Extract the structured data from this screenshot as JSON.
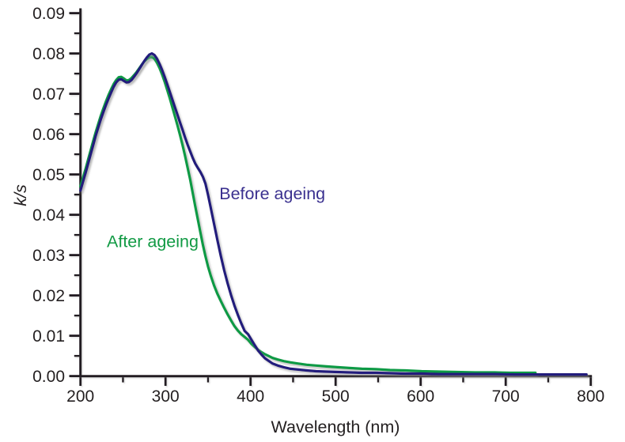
{
  "figure": {
    "background": "#ffffff"
  },
  "chart_data": {
    "type": "line",
    "title": "",
    "xlabel": "Wavelength (nm)",
    "ylabel": "k/s",
    "xlim": [
      200,
      800
    ],
    "ylim": [
      0,
      0.09
    ],
    "grid": false,
    "legend_position": "in-plot text labels",
    "axis_color": "#231f20",
    "x_major_ticks": [
      200,
      300,
      400,
      500,
      600,
      700,
      800
    ],
    "x_minor_ticks": [
      250,
      350,
      450,
      550,
      650,
      750
    ],
    "y_major_ticks": [
      0,
      0.01,
      0.02,
      0.03,
      0.04,
      0.05,
      0.06,
      0.07,
      0.08,
      0.09
    ],
    "y_minor_ticks": [
      0.005,
      0.015,
      0.025,
      0.035,
      0.045,
      0.055,
      0.065,
      0.075,
      0.085
    ],
    "y_tick_decimals": 2,
    "series": [
      {
        "name": "Before ageing",
        "color": "#241d7c",
        "label_color": "#3a308f",
        "label_anchor": {
          "nm": 363.3,
          "ks": 0.0438
        },
        "points": [
          [
            200,
            0.046
          ],
          [
            203,
            0.0482
          ],
          [
            206,
            0.0504
          ],
          [
            209,
            0.0527
          ],
          [
            212,
            0.055
          ],
          [
            215,
            0.0573
          ],
          [
            218,
            0.0596
          ],
          [
            221,
            0.0617
          ],
          [
            224,
            0.0637
          ],
          [
            227,
            0.0655
          ],
          [
            230,
            0.0672
          ],
          [
            233,
            0.0688
          ],
          [
            236,
            0.0703
          ],
          [
            239,
            0.0717
          ],
          [
            242,
            0.0728
          ],
          [
            245,
            0.0735
          ],
          [
            248,
            0.0736
          ],
          [
            251,
            0.0732
          ],
          [
            254,
            0.0728
          ],
          [
            257,
            0.0729
          ],
          [
            260,
            0.0734
          ],
          [
            263,
            0.0742
          ],
          [
            266,
            0.0751
          ],
          [
            269,
            0.0761
          ],
          [
            272,
            0.0771
          ],
          [
            275,
            0.0781
          ],
          [
            278,
            0.079
          ],
          [
            281,
            0.0797
          ],
          [
            284,
            0.08
          ],
          [
            287,
            0.0796
          ],
          [
            290,
            0.0787
          ],
          [
            293,
            0.0774
          ],
          [
            296,
            0.0759
          ],
          [
            299,
            0.0742
          ],
          [
            302,
            0.0724
          ],
          [
            305,
            0.0705
          ],
          [
            308,
            0.0686
          ],
          [
            311,
            0.0667
          ],
          [
            314,
            0.0648
          ],
          [
            317,
            0.0629
          ],
          [
            320,
            0.0611
          ],
          [
            323,
            0.0592
          ],
          [
            326,
            0.0574
          ],
          [
            329,
            0.0557
          ],
          [
            332,
            0.0541
          ],
          [
            335,
            0.0527
          ],
          [
            338,
            0.0516
          ],
          [
            341,
            0.0506
          ],
          [
            344,
            0.0494
          ],
          [
            347,
            0.0477
          ],
          [
            350,
            0.045
          ],
          [
            353,
            0.0419
          ],
          [
            357,
            0.0378
          ],
          [
            361,
            0.0337
          ],
          [
            365,
            0.0298
          ],
          [
            369,
            0.0262
          ],
          [
            373,
            0.023
          ],
          [
            377,
            0.0201
          ],
          [
            381,
            0.0175
          ],
          [
            385,
            0.0152
          ],
          [
            389,
            0.0131
          ],
          [
            393,
            0.0112
          ],
          [
            397,
            0.0104
          ],
          [
            401,
            0.009
          ],
          [
            405,
            0.0076
          ],
          [
            409,
            0.0063
          ],
          [
            413,
            0.0053
          ],
          [
            417,
            0.0044
          ],
          [
            421,
            0.0038
          ],
          [
            426,
            0.0031
          ],
          [
            432,
            0.0026
          ],
          [
            439,
            0.0022
          ],
          [
            447,
            0.0018
          ],
          [
            456,
            0.0016
          ],
          [
            466,
            0.0014
          ],
          [
            477,
            0.0012
          ],
          [
            489,
            0.0011
          ],
          [
            502,
            0.001
          ],
          [
            516,
            0.0009
          ],
          [
            531,
            0.0008
          ],
          [
            547,
            0.0008
          ],
          [
            564,
            0.0007
          ],
          [
            582,
            0.0006
          ],
          [
            601,
            0.0006
          ],
          [
            621,
            0.0005
          ],
          [
            642,
            0.0005
          ],
          [
            664,
            0.0005
          ],
          [
            687,
            0.0005
          ],
          [
            711,
            0.0004
          ],
          [
            736,
            0.0004
          ],
          [
            762,
            0.0004
          ],
          [
            795,
            0.0004
          ]
        ]
      },
      {
        "name": "After ageing",
        "color": "#119a44",
        "label_color": "#119a44",
        "label_anchor": {
          "nm": 231.0,
          "ks": 0.032
        },
        "points": [
          [
            200,
            0.047
          ],
          [
            203,
            0.0492
          ],
          [
            206,
            0.0514
          ],
          [
            209,
            0.0537
          ],
          [
            212,
            0.056
          ],
          [
            215,
            0.0583
          ],
          [
            218,
            0.0605
          ],
          [
            221,
            0.0626
          ],
          [
            224,
            0.0646
          ],
          [
            227,
            0.0664
          ],
          [
            230,
            0.0681
          ],
          [
            233,
            0.0697
          ],
          [
            236,
            0.0711
          ],
          [
            239,
            0.0724
          ],
          [
            242,
            0.0734
          ],
          [
            245,
            0.0741
          ],
          [
            248,
            0.0742
          ],
          [
            251,
            0.0738
          ],
          [
            254,
            0.0733
          ],
          [
            257,
            0.0734
          ],
          [
            260,
            0.0739
          ],
          [
            263,
            0.0746
          ],
          [
            266,
            0.0754
          ],
          [
            269,
            0.0763
          ],
          [
            272,
            0.0772
          ],
          [
            275,
            0.078
          ],
          [
            278,
            0.0786
          ],
          [
            281,
            0.079
          ],
          [
            284,
            0.0792
          ],
          [
            287,
            0.0787
          ],
          [
            290,
            0.0777
          ],
          [
            293,
            0.0764
          ],
          [
            296,
            0.0748
          ],
          [
            299,
            0.073
          ],
          [
            302,
            0.071
          ],
          [
            305,
            0.0689
          ],
          [
            308,
            0.0667
          ],
          [
            311,
            0.0645
          ],
          [
            314,
            0.0622
          ],
          [
            317,
            0.0598
          ],
          [
            320,
            0.0573
          ],
          [
            323,
            0.0546
          ],
          [
            326,
            0.0517
          ],
          [
            329,
            0.0487
          ],
          [
            332,
            0.0454
          ],
          [
            335,
            0.0421
          ],
          [
            338,
            0.0388
          ],
          [
            341,
            0.0356
          ],
          [
            344,
            0.0325
          ],
          [
            347,
            0.0297
          ],
          [
            350,
            0.0272
          ],
          [
            353,
            0.025
          ],
          [
            357,
            0.0225
          ],
          [
            361,
            0.0204
          ],
          [
            365,
            0.0186
          ],
          [
            369,
            0.0169
          ],
          [
            373,
            0.0153
          ],
          [
            377,
            0.0138
          ],
          [
            381,
            0.0124
          ],
          [
            385,
            0.0113
          ],
          [
            389,
            0.0104
          ],
          [
            393,
            0.0097
          ],
          [
            397,
            0.009
          ],
          [
            401,
            0.008
          ],
          [
            405,
            0.0072
          ],
          [
            409,
            0.0065
          ],
          [
            413,
            0.0059
          ],
          [
            417,
            0.0054
          ],
          [
            421,
            0.005
          ],
          [
            426,
            0.0045
          ],
          [
            432,
            0.0041
          ],
          [
            439,
            0.0037
          ],
          [
            447,
            0.0034
          ],
          [
            456,
            0.0031
          ],
          [
            466,
            0.0028
          ],
          [
            477,
            0.0026
          ],
          [
            489,
            0.0024
          ],
          [
            502,
            0.0022
          ],
          [
            516,
            0.002
          ],
          [
            531,
            0.0018
          ],
          [
            547,
            0.0017
          ],
          [
            564,
            0.0015
          ],
          [
            582,
            0.0014
          ],
          [
            601,
            0.0012
          ],
          [
            621,
            0.0011
          ],
          [
            642,
            0.001
          ],
          [
            664,
            0.0009
          ],
          [
            687,
            0.0009
          ],
          [
            705,
            0.0008
          ],
          [
            722,
            0.0008
          ],
          [
            735,
            0.0008
          ]
        ]
      }
    ]
  }
}
